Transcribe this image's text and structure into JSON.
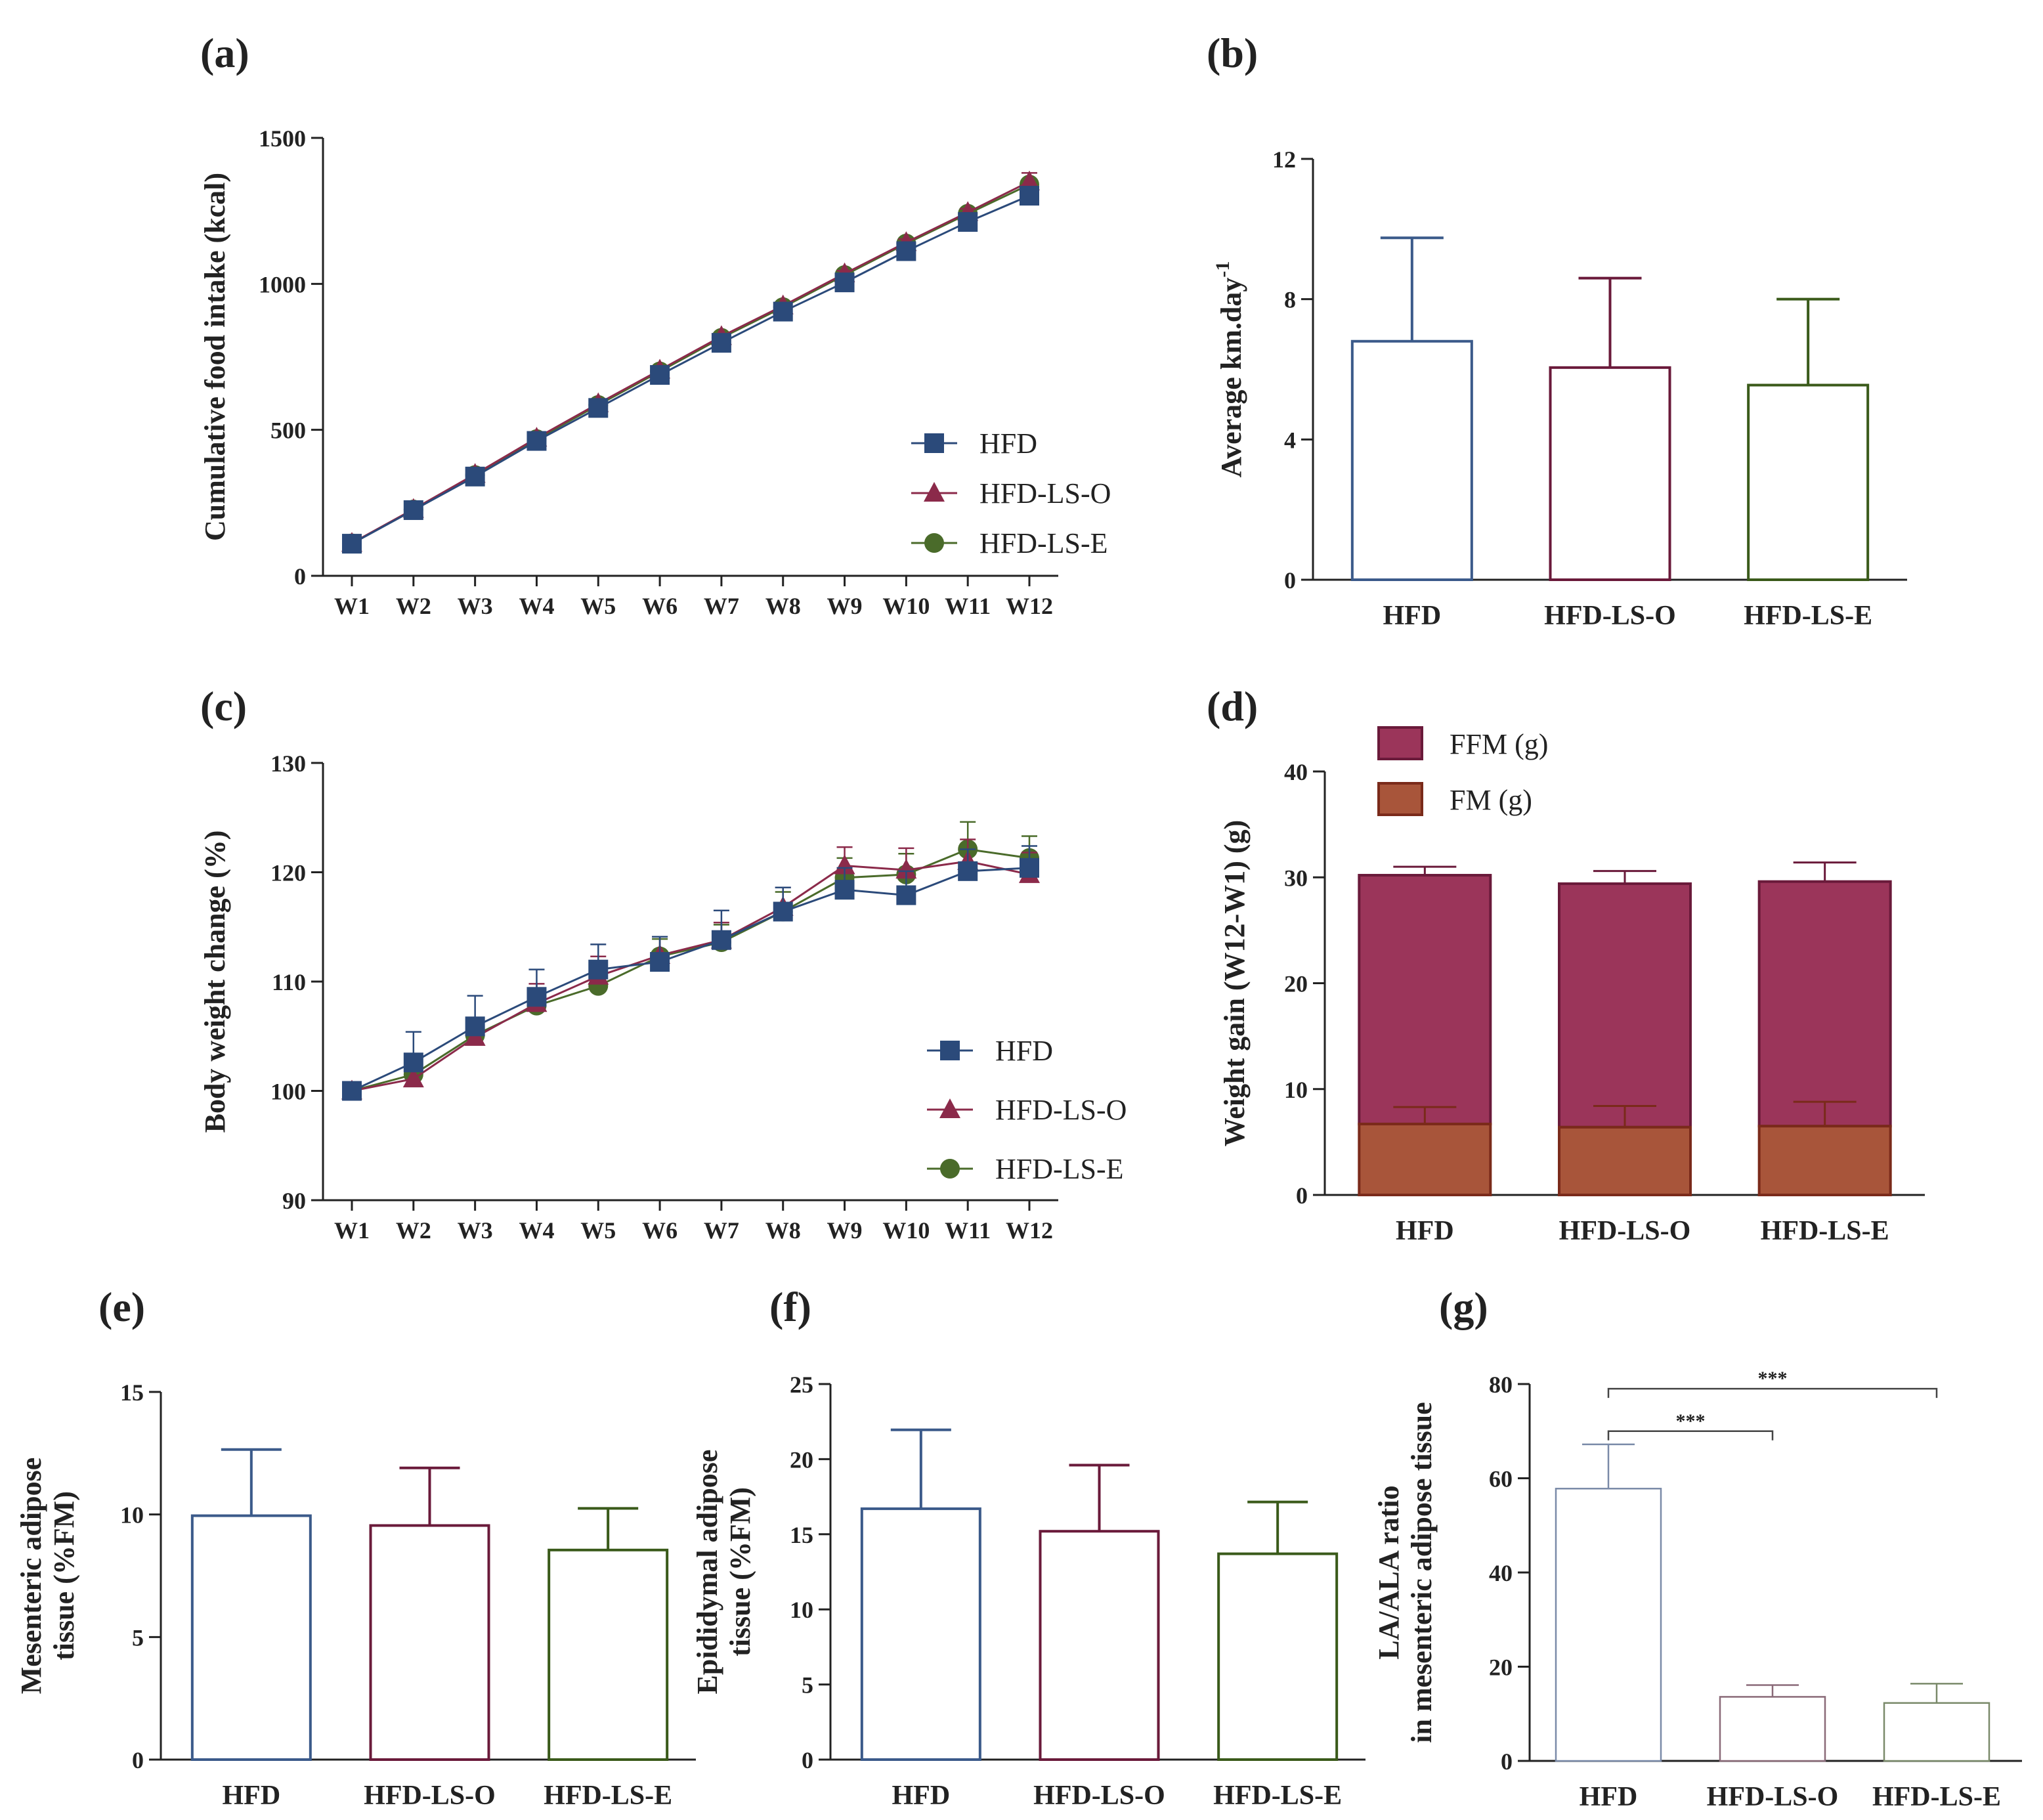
{
  "figure": {
    "panel_labels": [
      "(a)",
      "(b)",
      "(c)",
      "(d)",
      "(e)",
      "(f)",
      "(g)"
    ]
  },
  "chart_data": [
    {
      "panel": "(a)",
      "type": "line",
      "x": [
        "W1",
        "W2",
        "W3",
        "W4",
        "W5",
        "W6",
        "W7",
        "W8",
        "W9",
        "W10",
        "W11",
        "W12"
      ],
      "ylabel": "Cumulative food intake (kcal)",
      "ylim": [
        0,
        1500
      ],
      "yticks": [
        0,
        500,
        1000,
        1500
      ],
      "legend_position": "bottom-right",
      "series": [
        {
          "name": "HFD",
          "color": "#2b4a7a",
          "marker": "square",
          "values": [
            110,
            225,
            340,
            462,
            575,
            688,
            798,
            905,
            1005,
            1112,
            1212,
            1302
          ],
          "errors": [
            5,
            5,
            6,
            6,
            7,
            8,
            8,
            9,
            10,
            10,
            12,
            12
          ]
        },
        {
          "name": "HFD-LS-O",
          "color": "#8b2a4a",
          "marker": "triangle",
          "values": [
            112,
            228,
            348,
            472,
            590,
            705,
            820,
            925,
            1035,
            1142,
            1245,
            1350
          ],
          "errors": [
            5,
            5,
            6,
            6,
            7,
            8,
            8,
            9,
            10,
            11,
            12,
            30
          ]
        },
        {
          "name": "HFD-LS-E",
          "color": "#4a6b2a",
          "marker": "circle",
          "values": [
            111,
            227,
            345,
            468,
            585,
            700,
            815,
            920,
            1030,
            1138,
            1240,
            1340
          ],
          "errors": [
            5,
            5,
            6,
            6,
            7,
            8,
            8,
            9,
            10,
            10,
            12,
            15
          ]
        }
      ]
    },
    {
      "panel": "(b)",
      "type": "bar",
      "categories": [
        "HFD",
        "HFD-LS-O",
        "HFD-LS-E"
      ],
      "ylabel": "Average km.day",
      "ylabel_superscript": "-1",
      "ylim": [
        0,
        12
      ],
      "yticks": [
        0,
        4,
        8,
        12
      ],
      "bar_colors": [
        "#3b5a8a",
        "#6a1a3a",
        "#3a5a1a"
      ],
      "values": [
        6.8,
        6.05,
        5.55
      ],
      "errors": [
        2.95,
        2.55,
        2.45
      ]
    },
    {
      "panel": "(c)",
      "type": "line",
      "x": [
        "W1",
        "W2",
        "W3",
        "W4",
        "W5",
        "W6",
        "W7",
        "W8",
        "W9",
        "W10",
        "W11",
        "W12"
      ],
      "ylabel": "Body weight change  (%)",
      "ylim": [
        90,
        130
      ],
      "yticks": [
        90,
        100,
        110,
        120,
        130
      ],
      "legend_position": "bottom-right",
      "series": [
        {
          "name": "HFD",
          "color": "#2b4a7a",
          "marker": "square",
          "values": [
            100,
            102.6,
            105.9,
            108.6,
            111.1,
            111.8,
            113.8,
            116.4,
            118.4,
            117.9,
            120.1,
            120.4
          ],
          "errors": [
            0.2,
            2.8,
            2.8,
            2.5,
            2.3,
            2.3,
            2.7,
            2.2,
            2.0,
            2.2,
            2.0,
            2.0
          ]
        },
        {
          "name": "HFD-LS-O",
          "color": "#8b2a4a",
          "marker": "triangle",
          "values": [
            100,
            101.1,
            104.9,
            108.0,
            110.5,
            112.4,
            113.8,
            116.8,
            120.6,
            120.2,
            121.0,
            119.8
          ],
          "errors": [
            0.2,
            1.2,
            1.5,
            1.8,
            1.8,
            1.7,
            1.6,
            1.8,
            1.7,
            2.0,
            2.0,
            2.0
          ]
        },
        {
          "name": "HFD-LS-E",
          "color": "#4a6b2a",
          "marker": "circle",
          "values": [
            100,
            101.5,
            105.1,
            107.8,
            109.6,
            112.3,
            113.6,
            116.4,
            119.5,
            119.8,
            122.1,
            121.3
          ],
          "errors": [
            0.2,
            1.2,
            1.4,
            1.6,
            1.6,
            1.6,
            1.6,
            1.8,
            1.8,
            1.9,
            2.5,
            2.0
          ]
        }
      ]
    },
    {
      "panel": "(d)",
      "type": "bar",
      "stacked": true,
      "categories": [
        "HFD",
        "HFD-LS-O",
        "HFD-LS-E"
      ],
      "ylabel": "Weight gain (W12-W1) (g)",
      "ylim": [
        0,
        40
      ],
      "yticks": [
        0,
        10,
        20,
        30,
        40
      ],
      "legend_position": "top-left",
      "series": [
        {
          "name": "FFM (g)",
          "color": "#9b355a",
          "values": [
            23.5,
            23.0,
            23.1
          ],
          "errors": [
            0.8,
            1.2,
            1.8
          ]
        },
        {
          "name": "FM (g)",
          "color": "#a8553a",
          "values": [
            6.7,
            6.4,
            6.5
          ],
          "errors": [
            1.6,
            2.0,
            2.3
          ]
        }
      ]
    },
    {
      "panel": "(e)",
      "type": "bar",
      "categories": [
        "HFD",
        "HFD-LS-O",
        "HFD-LS-E"
      ],
      "ylabel": "Mesenteric adipose tissue (%FM)",
      "ylabel_lines": [
        "Mesenteric adipose",
        "tissue (%FM)"
      ],
      "ylim": [
        0,
        15
      ],
      "yticks": [
        0,
        5,
        10,
        15
      ],
      "bar_colors": [
        "#3b5a8a",
        "#6a1a3a",
        "#3a5a1a"
      ],
      "values": [
        9.95,
        9.55,
        8.55
      ],
      "errors": [
        2.7,
        2.35,
        1.7
      ]
    },
    {
      "panel": "(f)",
      "type": "bar",
      "categories": [
        "HFD",
        "HFD-LS-O",
        "HFD-LS-E"
      ],
      "ylabel": "Epididymal adipose tissue (%FM)",
      "ylabel_lines": [
        "Epididymal adipose",
        "tissue (%FM)"
      ],
      "ylim": [
        0,
        25
      ],
      "yticks": [
        0,
        5,
        10,
        15,
        20,
        25
      ],
      "bar_colors": [
        "#3b5a8a",
        "#6a1a3a",
        "#3a5a1a"
      ],
      "values": [
        16.7,
        15.2,
        13.7
      ],
      "errors": [
        5.25,
        4.4,
        3.45
      ]
    },
    {
      "panel": "(g)",
      "type": "bar",
      "categories": [
        "HFD",
        "HFD-LS-O",
        "HFD-LS-E"
      ],
      "ylabel": "LA/ALA ratio in mesenteric adipose tissue",
      "ylabel_lines": [
        "LA/ALA ratio",
        "in mesenteric adipose tissue"
      ],
      "ylim": [
        0,
        80
      ],
      "yticks": [
        0,
        20,
        40,
        60,
        80
      ],
      "bar_colors": [
        "#7a8aa8",
        "#8a6a78",
        "#7a8a6a"
      ],
      "values": [
        57.8,
        13.6,
        12.3
      ],
      "errors": [
        9.4,
        2.5,
        4.1
      ],
      "significance": [
        {
          "from": "HFD",
          "to": "HFD-LS-O",
          "label": "***"
        },
        {
          "from": "HFD",
          "to": "HFD-LS-E",
          "label": "***"
        }
      ]
    }
  ]
}
